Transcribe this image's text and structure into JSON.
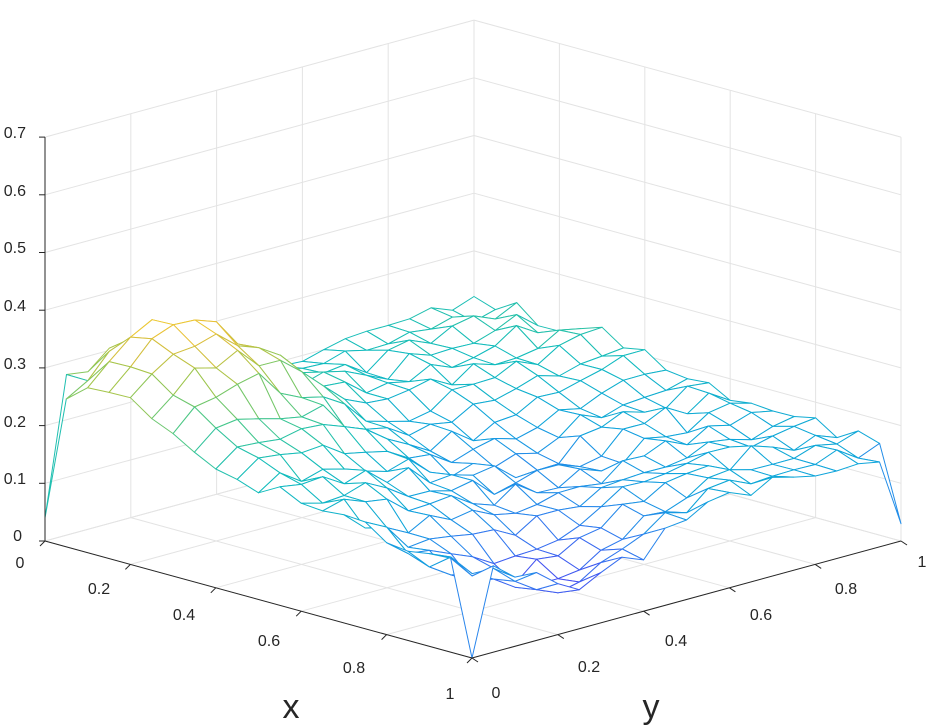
{
  "chart_data": {
    "type": "surface-mesh",
    "title": "",
    "xlabel": "x",
    "ylabel": "y",
    "zlabel": "",
    "xlim": [
      0,
      1
    ],
    "ylim": [
      0,
      1
    ],
    "zlim": [
      0,
      0.7
    ],
    "x_ticks": [
      "0",
      "0.2",
      "0.4",
      "0.6",
      "0.8",
      "1"
    ],
    "y_ticks": [
      "0",
      "0.2",
      "0.4",
      "0.6",
      "0.8",
      "1"
    ],
    "z_ticks": [
      "0",
      "0.1",
      "0.2",
      "0.3",
      "0.4",
      "0.5",
      "0.6",
      "0.7"
    ],
    "colormap": [
      "#3e26a8",
      "#4a49f1",
      "#2f7fef",
      "#0fa3dd",
      "#11bcbd",
      "#47c88a",
      "#9ec64d",
      "#e6bd39",
      "#f9e027"
    ],
    "grid": true,
    "resolution": 20,
    "surface_description_values": {
      "corner_x0_y0": 0.04,
      "corner_x1_y0": 0.0,
      "corner_x0_y1": 0.2,
      "corner_x1_y1": 0.03,
      "peak": 0.39,
      "peak_at": [
        0.15,
        0.18
      ]
    }
  }
}
